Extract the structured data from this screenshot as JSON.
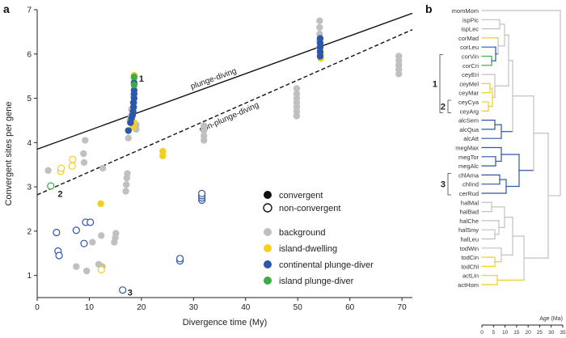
{
  "colors": {
    "background": "#c0c0c0",
    "island_dwelling": "#f3cf21",
    "continental_plunge_diver": "#2d56a8",
    "island_plunge_diver": "#3cab4a",
    "axis": "#222222"
  },
  "chart_data": [
    {
      "panel": "a",
      "type": "scatter",
      "xlabel": "Divergence time (My)",
      "ylabel": "Convergent sites per gene",
      "xlim": [
        0,
        72
      ],
      "ylim": [
        0.5,
        7
      ],
      "xticks": [
        "0",
        "10",
        "20",
        "30",
        "40",
        "50",
        "60",
        "70"
      ],
      "yticks": [
        "1",
        "2",
        "3",
        "4",
        "5",
        "6",
        "7"
      ],
      "lines": [
        {
          "name": "plunge-diving",
          "style": "solid",
          "x": [
            0,
            72
          ],
          "y": [
            3.85,
            6.92
          ]
        },
        {
          "name": "non-plunge-diving",
          "style": "dashed",
          "x": [
            0,
            72
          ],
          "y": [
            2.82,
            6.55
          ]
        }
      ],
      "legend": {
        "shape": [
          {
            "label": "convergent",
            "fill": "filled"
          },
          {
            "label": "non-convergent",
            "fill": "open"
          }
        ],
        "color": [
          {
            "label": "background",
            "color": "#c0c0c0"
          },
          {
            "label": "island-dwelling",
            "color": "#f3cf21"
          },
          {
            "label": "continental plunge-diver",
            "color": "#2d56a8"
          },
          {
            "label": "island plunge-diver",
            "color": "#3cab4a"
          }
        ]
      },
      "annotations": [
        {
          "label": "1",
          "x": 18.6,
          "y": 5.45
        },
        {
          "label": "2",
          "x": 3.0,
          "y": 2.85
        },
        {
          "label": "3",
          "x": 16.4,
          "y": 0.62
        }
      ],
      "series": [
        {
          "name": "background convergent",
          "group": "background",
          "filled": true,
          "points": [
            [
              2.1,
              3.37
            ],
            [
              8.9,
              3.75
            ],
            [
              9.0,
              3.55
            ],
            [
              9.2,
              4.05
            ],
            [
              12.6,
              3.42
            ],
            [
              17.0,
              2.9
            ],
            [
              17.1,
              3.05
            ],
            [
              17.2,
              3.2
            ],
            [
              17.3,
              3.3
            ],
            [
              17.5,
              4.1
            ],
            [
              17.8,
              4.5
            ],
            [
              18.0,
              4.6
            ],
            [
              18.1,
              4.75
            ],
            [
              18.4,
              4.9
            ],
            [
              18.5,
              5.05
            ],
            [
              32.0,
              4.05
            ],
            [
              32.0,
              4.15
            ],
            [
              32.0,
              4.27
            ],
            [
              32.0,
              4.38
            ],
            [
              49.8,
              4.6
            ],
            [
              49.8,
              4.7
            ],
            [
              49.8,
              4.8
            ],
            [
              49.8,
              4.9
            ],
            [
              49.8,
              5.0
            ],
            [
              49.8,
              5.1
            ],
            [
              49.8,
              5.22
            ],
            [
              54.2,
              6.15
            ],
            [
              54.2,
              6.3
            ],
            [
              54.2,
              6.45
            ],
            [
              54.2,
              6.6
            ],
            [
              54.2,
              6.75
            ],
            [
              69.4,
              5.55
            ],
            [
              69.4,
              5.65
            ],
            [
              69.4,
              5.75
            ],
            [
              69.4,
              5.85
            ],
            [
              69.4,
              5.95
            ],
            [
              7.5,
              1.2
            ],
            [
              9.5,
              1.1
            ],
            [
              10.6,
              1.75
            ],
            [
              11.8,
              1.25
            ],
            [
              12.3,
              1.9
            ],
            [
              12.5,
              1.2
            ],
            [
              14.8,
              1.75
            ],
            [
              15.0,
              1.85
            ],
            [
              15.1,
              1.95
            ],
            [
              19.0,
              4.3
            ],
            [
              19.0,
              4.4
            ]
          ]
        },
        {
          "name": "island-dwelling convergent",
          "group": "island_dwelling",
          "filled": true,
          "points": [
            [
              12.2,
              2.62
            ],
            [
              18.4,
              4.35
            ],
            [
              18.6,
              4.45
            ],
            [
              18.6,
              5.45
            ],
            [
              18.6,
              5.52
            ],
            [
              24.1,
              3.7
            ],
            [
              24.1,
              3.8
            ],
            [
              54.4,
              5.9
            ],
            [
              54.4,
              6.0
            ]
          ]
        },
        {
          "name": "island-dwelling non-convergent",
          "group": "island_dwelling",
          "filled": false,
          "points": [
            [
              4.5,
              3.35
            ],
            [
              4.6,
              3.42
            ],
            [
              6.7,
              3.47
            ],
            [
              6.8,
              3.62
            ],
            [
              12.3,
              1.13
            ]
          ]
        },
        {
          "name": "continental plunge-diver convergent",
          "group": "continental_plunge_diver",
          "filled": true,
          "points": [
            [
              17.5,
              4.27
            ],
            [
              17.9,
              4.45
            ],
            [
              18.1,
              4.55
            ],
            [
              18.3,
              4.62
            ],
            [
              18.4,
              4.7
            ],
            [
              18.5,
              4.8
            ],
            [
              18.5,
              4.9
            ],
            [
              18.6,
              5.0
            ],
            [
              18.6,
              5.1
            ],
            [
              18.6,
              5.18
            ],
            [
              18.6,
              5.35
            ],
            [
              54.3,
              5.95
            ],
            [
              54.3,
              6.05
            ],
            [
              54.3,
              6.15
            ],
            [
              54.3,
              6.25
            ],
            [
              54.3,
              6.35
            ]
          ]
        },
        {
          "name": "continental plunge-diver non-convergent",
          "group": "continental_plunge_diver",
          "filled": false,
          "points": [
            [
              3.7,
              1.97
            ],
            [
              4.0,
              1.55
            ],
            [
              4.2,
              1.45
            ],
            [
              7.5,
              2.02
            ],
            [
              9.0,
              1.72
            ],
            [
              9.3,
              2.2
            ],
            [
              10.2,
              2.2
            ],
            [
              16.4,
              0.67
            ],
            [
              27.4,
              1.33
            ],
            [
              27.4,
              1.38
            ],
            [
              31.6,
              2.7
            ],
            [
              31.6,
              2.75
            ],
            [
              31.6,
              2.8
            ],
            [
              31.6,
              2.85
            ]
          ]
        },
        {
          "name": "island plunge-diver convergent",
          "group": "island_plunge_diver",
          "filled": true,
          "points": [
            [
              18.6,
              5.3
            ],
            [
              18.6,
              5.48
            ]
          ]
        },
        {
          "name": "island plunge-diver non-convergent",
          "group": "island_plunge_diver",
          "filled": false,
          "points": [
            [
              2.6,
              3.02
            ]
          ]
        }
      ]
    },
    {
      "panel": "b",
      "type": "tree",
      "axis_label": "Age (Ma)",
      "xticks": [
        "0",
        "5",
        "10",
        "15",
        "20",
        "25",
        "30",
        "35"
      ],
      "tips": [
        "momMom",
        "ispPic",
        "ispLec",
        "corMad",
        "corLeu",
        "corVin",
        "corCri",
        "ceyEri",
        "ceyMel",
        "ceyMar",
        "ceyCya",
        "ceyArg",
        "alcSem",
        "alcQua",
        "alcAtt",
        "megMax",
        "megTor",
        "megAlc",
        "chlAma",
        "chlInd",
        "cerRud",
        "halMal",
        "halBad",
        "halChe",
        "halSmy",
        "halLeu",
        "todWin",
        "todCin",
        "todChl",
        "actLin",
        "actHom"
      ],
      "clade_labels": [
        {
          "label": "1",
          "from": "corVin",
          "to": "ceyArg"
        },
        {
          "label": "2",
          "from": "ceyCya",
          "to": "ceyArg"
        },
        {
          "label": "3",
          "from": "chlAma",
          "to": "cerRud"
        }
      ]
    }
  ]
}
